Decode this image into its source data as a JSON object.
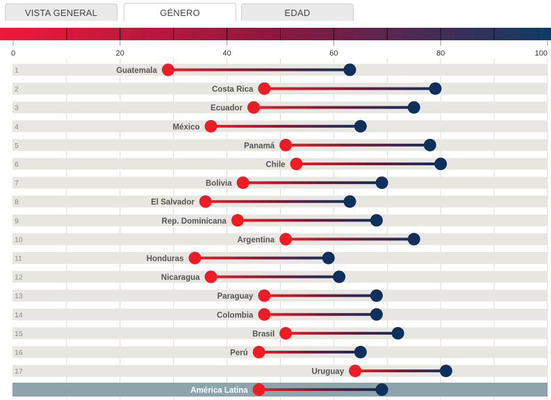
{
  "tabs": [
    {
      "label": "VISTA GENERAL",
      "active": false
    },
    {
      "label": "GÉNERO",
      "active": true
    },
    {
      "label": "EDAD",
      "active": false
    }
  ],
  "colors": {
    "female": "#ee1c25",
    "male": "#0f2f5c",
    "row_bg": "#e8e6e1",
    "avg_row_bg": "#8ea4ac",
    "scale_start": "#ee1a3a",
    "scale_mid": "#8e1740",
    "scale_end": "#0e3c66"
  },
  "chart_data": {
    "type": "dumbbell",
    "xlim": [
      0,
      100
    ],
    "ticks": [
      "0",
      "20",
      "40",
      "60",
      "80",
      "100"
    ],
    "grid": true,
    "rows": [
      {
        "rank": "1",
        "country": "Guatemala",
        "low": 29,
        "high": 63
      },
      {
        "rank": "2",
        "country": "Costa Rica",
        "low": 47,
        "high": 79
      },
      {
        "rank": "3",
        "country": "Ecuador",
        "low": 45,
        "high": 75
      },
      {
        "rank": "4",
        "country": "México",
        "low": 37,
        "high": 65
      },
      {
        "rank": "5",
        "country": "Panamá",
        "low": 51,
        "high": 78
      },
      {
        "rank": "6",
        "country": "Chile",
        "low": 53,
        "high": 80
      },
      {
        "rank": "7",
        "country": "Bolivia",
        "low": 43,
        "high": 69
      },
      {
        "rank": "8",
        "country": "El Salvador",
        "low": 36,
        "high": 63
      },
      {
        "rank": "9",
        "country": "Rep. Dominicana",
        "low": 42,
        "high": 68
      },
      {
        "rank": "10",
        "country": "Argentina",
        "low": 51,
        "high": 75
      },
      {
        "rank": "11",
        "country": "Honduras",
        "low": 34,
        "high": 59
      },
      {
        "rank": "12",
        "country": "Nicaragua",
        "low": 37,
        "high": 61
      },
      {
        "rank": "13",
        "country": "Paraguay",
        "low": 47,
        "high": 68
      },
      {
        "rank": "14",
        "country": "Colombia",
        "low": 47,
        "high": 68
      },
      {
        "rank": "15",
        "country": "Brasil",
        "low": 51,
        "high": 72
      },
      {
        "rank": "16",
        "country": "Perú",
        "low": 46,
        "high": 65
      },
      {
        "rank": "17",
        "country": "Uruguay",
        "low": 64,
        "high": 81
      }
    ],
    "average": {
      "country": "América Latina",
      "low": 46,
      "high": 69
    }
  }
}
